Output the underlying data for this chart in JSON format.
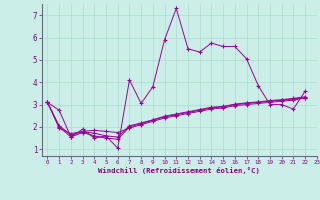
{
  "xlabel": "Windchill (Refroidissement éolien,°C)",
  "bg_color": "#cceee8",
  "grid_color": "#aaddcc",
  "line_color": "#990099",
  "axis_color": "#666688",
  "tick_color": "#880088",
  "xlim": [
    -0.5,
    23
  ],
  "ylim": [
    0.7,
    7.5
  ],
  "xticks": [
    0,
    1,
    2,
    3,
    4,
    5,
    6,
    7,
    8,
    9,
    10,
    11,
    12,
    13,
    14,
    15,
    16,
    17,
    18,
    19,
    20,
    21,
    22,
    23
  ],
  "yticks": [
    1,
    2,
    3,
    4,
    5,
    6,
    7
  ],
  "series": [
    [
      3.1,
      2.75,
      1.55,
      1.9,
      1.5,
      1.6,
      1.05,
      4.1,
      3.05,
      3.8,
      5.9,
      7.3,
      5.5,
      5.35,
      5.75,
      5.6,
      5.6,
      5.05,
      3.85,
      3.0,
      3.0,
      2.8,
      3.6
    ],
    [
      3.1,
      2.0,
      1.55,
      1.75,
      1.6,
      1.5,
      1.45,
      2.0,
      2.15,
      2.3,
      2.45,
      2.55,
      2.65,
      2.75,
      2.85,
      2.9,
      3.0,
      3.05,
      3.1,
      3.15,
      3.2,
      3.25,
      3.3
    ],
    [
      3.1,
      1.95,
      1.7,
      1.8,
      1.85,
      1.8,
      1.75,
      1.95,
      2.1,
      2.25,
      2.4,
      2.5,
      2.6,
      2.7,
      2.8,
      2.85,
      2.95,
      3.0,
      3.05,
      3.1,
      3.15,
      3.2,
      3.3
    ],
    [
      3.1,
      2.05,
      1.65,
      1.78,
      1.72,
      1.6,
      1.55,
      2.05,
      2.18,
      2.32,
      2.48,
      2.58,
      2.68,
      2.78,
      2.88,
      2.92,
      3.02,
      3.08,
      3.12,
      3.18,
      3.22,
      3.28,
      3.35
    ]
  ],
  "figsize": [
    3.2,
    2.0
  ],
  "dpi": 100
}
